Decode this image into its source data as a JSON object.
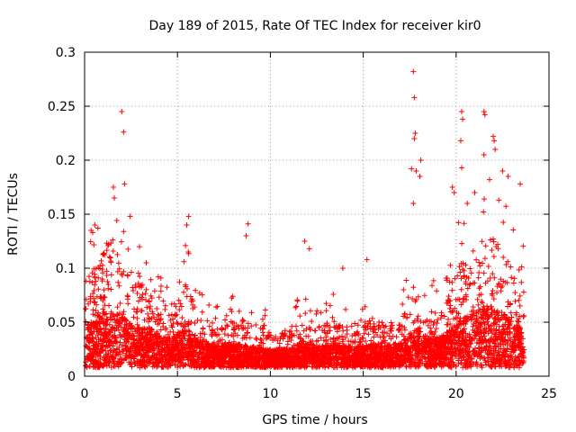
{
  "chart_data": {
    "type": "scatter",
    "title": "Day 189 of 2015, Rate Of TEC Index for receiver kir0",
    "xlabel": "GPS time / hours",
    "ylabel": "ROTI / TECUs",
    "xlim": [
      0,
      25
    ],
    "ylim": [
      0,
      0.3
    ],
    "x_ticks": [
      "0",
      "5",
      "10",
      "15",
      "20",
      "25"
    ],
    "y_ticks": [
      "0",
      "0.05",
      "0.1",
      "0.15",
      "0.2",
      "0.25",
      "0.3"
    ],
    "grid": true,
    "marker": "+",
    "series_color": "#ff0000",
    "density_profile": [
      [
        0.0,
        0.05,
        0.1
      ],
      [
        0.5,
        0.05,
        0.1
      ],
      [
        1.0,
        0.06,
        0.12
      ],
      [
        1.5,
        0.06,
        0.13
      ],
      [
        2.0,
        0.055,
        0.1
      ],
      [
        2.5,
        0.05,
        0.09
      ],
      [
        3.0,
        0.045,
        0.085
      ],
      [
        3.5,
        0.045,
        0.08
      ],
      [
        4.0,
        0.04,
        0.07
      ],
      [
        4.5,
        0.035,
        0.065
      ],
      [
        5.0,
        0.04,
        0.07
      ],
      [
        5.5,
        0.045,
        0.09
      ],
      [
        6.0,
        0.035,
        0.06
      ],
      [
        6.5,
        0.03,
        0.05
      ],
      [
        7.0,
        0.028,
        0.045
      ],
      [
        7.5,
        0.028,
        0.045
      ],
      [
        8.0,
        0.03,
        0.05
      ],
      [
        8.5,
        0.03,
        0.055
      ],
      [
        9.0,
        0.028,
        0.05
      ],
      [
        9.5,
        0.026,
        0.045
      ],
      [
        10.0,
        0.025,
        0.04
      ],
      [
        10.5,
        0.025,
        0.04
      ],
      [
        11.0,
        0.026,
        0.045
      ],
      [
        11.5,
        0.03,
        0.05
      ],
      [
        12.0,
        0.03,
        0.05
      ],
      [
        12.5,
        0.028,
        0.05
      ],
      [
        13.0,
        0.028,
        0.05
      ],
      [
        13.5,
        0.03,
        0.055
      ],
      [
        14.0,
        0.028,
        0.05
      ],
      [
        14.5,
        0.028,
        0.05
      ],
      [
        15.0,
        0.028,
        0.05
      ],
      [
        15.5,
        0.03,
        0.055
      ],
      [
        16.0,
        0.028,
        0.05
      ],
      [
        16.5,
        0.03,
        0.05
      ],
      [
        17.0,
        0.03,
        0.05
      ],
      [
        17.5,
        0.04,
        0.07
      ],
      [
        18.0,
        0.045,
        0.08
      ],
      [
        18.5,
        0.035,
        0.06
      ],
      [
        19.0,
        0.035,
        0.06
      ],
      [
        19.5,
        0.04,
        0.07
      ],
      [
        20.0,
        0.05,
        0.1
      ],
      [
        20.5,
        0.055,
        0.11
      ],
      [
        21.0,
        0.06,
        0.12
      ],
      [
        21.5,
        0.065,
        0.13
      ],
      [
        22.0,
        0.065,
        0.13
      ],
      [
        22.5,
        0.06,
        0.12
      ],
      [
        23.0,
        0.05,
        0.1
      ],
      [
        23.5,
        0.045,
        0.09
      ]
    ],
    "outliers": [
      [
        1.55,
        0.175
      ],
      [
        1.6,
        0.165
      ],
      [
        2.0,
        0.245
      ],
      [
        2.1,
        0.226
      ],
      [
        2.15,
        0.178
      ],
      [
        0.55,
        0.14
      ],
      [
        0.35,
        0.135
      ],
      [
        2.45,
        0.148
      ],
      [
        5.6,
        0.148
      ],
      [
        5.5,
        0.14
      ],
      [
        8.8,
        0.141
      ],
      [
        8.7,
        0.13
      ],
      [
        11.85,
        0.125
      ],
      [
        12.1,
        0.118
      ],
      [
        13.9,
        0.1
      ],
      [
        15.2,
        0.108
      ],
      [
        17.7,
        0.282
      ],
      [
        17.75,
        0.258
      ],
      [
        17.8,
        0.225
      ],
      [
        17.75,
        0.22
      ],
      [
        17.6,
        0.192
      ],
      [
        17.85,
        0.19
      ],
      [
        18.1,
        0.2
      ],
      [
        18.05,
        0.185
      ],
      [
        17.7,
        0.16
      ],
      [
        19.8,
        0.175
      ],
      [
        19.9,
        0.17
      ],
      [
        20.3,
        0.245
      ],
      [
        20.35,
        0.238
      ],
      [
        20.25,
        0.218
      ],
      [
        20.3,
        0.193
      ],
      [
        21.5,
        0.245
      ],
      [
        21.55,
        0.242
      ],
      [
        21.5,
        0.205
      ],
      [
        22.0,
        0.222
      ],
      [
        22.05,
        0.218
      ],
      [
        22.1,
        0.21
      ],
      [
        22.5,
        0.19
      ],
      [
        22.8,
        0.185
      ],
      [
        23.45,
        0.178
      ],
      [
        21.0,
        0.17
      ],
      [
        21.8,
        0.182
      ],
      [
        22.3,
        0.163
      ],
      [
        20.6,
        0.16
      ]
    ]
  }
}
